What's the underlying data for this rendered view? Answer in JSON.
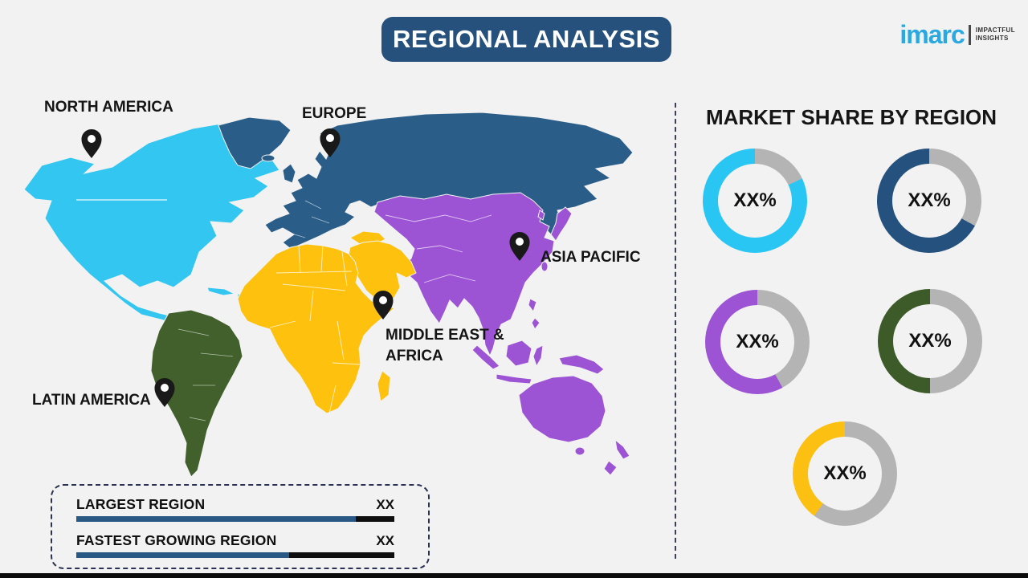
{
  "header": {
    "title": "REGIONAL ANALYSIS"
  },
  "logo": {
    "brand": "imarc",
    "tagline_line1": "IMPACTFUL",
    "tagline_line2": "INSIGHTS"
  },
  "map": {
    "regions": [
      {
        "id": "north-america",
        "label": "NORTH AMERICA",
        "color": "#33c6f0"
      },
      {
        "id": "europe",
        "label": "EUROPE",
        "color": "#2a5e89"
      },
      {
        "id": "asia-pacific",
        "label": "ASIA PACIFIC",
        "color": "#9c53d4"
      },
      {
        "id": "middle-east-africa",
        "label": "MIDDLE EAST & AFRICA",
        "label_line1": "MIDDLE EAST &",
        "label_line2": "AFRICA",
        "color": "#fdc10e"
      },
      {
        "id": "latin-america",
        "label": "LATIN AMERICA",
        "color": "#41602c"
      }
    ]
  },
  "market_share": {
    "title": "MARKET SHARE BY REGION",
    "track_color": "#b4b4b4",
    "donuts": [
      {
        "region": "North America",
        "value_label": "XX%",
        "color": "#29c6f4",
        "percent": 82
      },
      {
        "region": "Europe",
        "value_label": "XX%",
        "color": "#25517e",
        "percent": 67
      },
      {
        "region": "Asia Pacific",
        "value_label": "XX%",
        "color": "#9c53d4",
        "percent": 58
      },
      {
        "region": "Latin America",
        "value_label": "XX%",
        "color": "#3c5b28",
        "percent": 50
      },
      {
        "region": "Middle East & Africa",
        "value_label": "XX%",
        "color": "#fcc012",
        "percent": 40
      }
    ]
  },
  "legend": {
    "rows": [
      {
        "label": "LARGEST REGION",
        "value": "XX",
        "fill_percent": 88
      },
      {
        "label": "FASTEST GROWING REGION",
        "value": "XX",
        "fill_percent": 67
      }
    ]
  },
  "chart_data": [
    {
      "type": "pie",
      "title": "MARKET SHARE BY REGION",
      "note": "Five donut gauges; printed values are placeholders (XX%). Remainder of each ring is gray.",
      "series": [
        {
          "name": "North America",
          "label": "XX%",
          "color": "#29c6f4",
          "shown_fraction": 0.82
        },
        {
          "name": "Europe",
          "label": "XX%",
          "color": "#25517e",
          "shown_fraction": 0.67
        },
        {
          "name": "Asia Pacific",
          "label": "XX%",
          "color": "#9c53d4",
          "shown_fraction": 0.58
        },
        {
          "name": "Latin America",
          "label": "XX%",
          "color": "#3c5b28",
          "shown_fraction": 0.5
        },
        {
          "name": "Middle East & Africa",
          "label": "XX%",
          "color": "#fcc012",
          "shown_fraction": 0.4
        }
      ],
      "legend_position": "none"
    },
    {
      "type": "bar",
      "categories": [
        "LARGEST REGION",
        "FASTEST GROWING REGION"
      ],
      "values": [
        "XX",
        "XX"
      ],
      "fill_fractions": [
        0.88,
        0.67
      ],
      "bar_color": "#2a5884",
      "remainder_color": "#0e0e0e"
    }
  ]
}
